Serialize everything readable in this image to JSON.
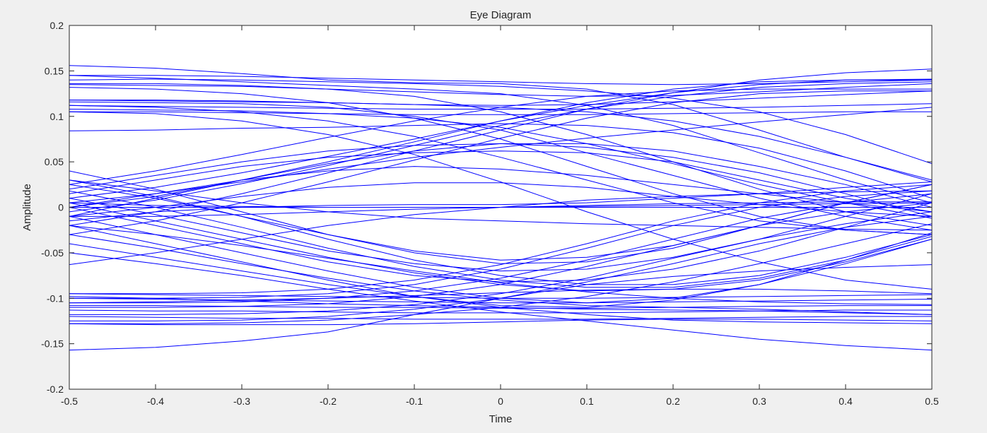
{
  "chart_data": {
    "type": "line",
    "title": "Eye Diagram",
    "xlabel": "Time",
    "ylabel": "Amplitude",
    "xlim": [
      -0.5,
      0.5
    ],
    "ylim": [
      -0.2,
      0.2
    ],
    "xticks": [
      -0.5,
      -0.4,
      -0.3,
      -0.2,
      -0.1,
      0,
      0.1,
      0.2,
      0.3,
      0.4,
      0.5
    ],
    "yticks": [
      -0.2,
      -0.15,
      -0.1,
      -0.05,
      0,
      0.05,
      0.1,
      0.15,
      0.2
    ],
    "xtick_labels": [
      "-0.5",
      "-0.4",
      "-0.3",
      "-0.2",
      "-0.1",
      "0",
      "0.1",
      "0.2",
      "0.3",
      "0.4",
      "0.5"
    ],
    "ytick_labels": [
      "-0.2",
      "-0.15",
      "-0.1",
      "-0.05",
      "0",
      "0.05",
      "0.1",
      "0.15",
      "0.2"
    ],
    "grid": false,
    "line_color": "#0000ff",
    "x": [
      -0.5,
      -0.4,
      -0.3,
      -0.2,
      -0.1,
      0,
      0.1,
      0.2,
      0.3,
      0.4,
      0.5
    ],
    "traces": [
      [
        0.156,
        0.153,
        0.147,
        0.14,
        0.137,
        0.136,
        0.13,
        0.113,
        0.085,
        0.055,
        0.028
      ],
      [
        0.145,
        0.142,
        0.138,
        0.134,
        0.13,
        0.125,
        0.112,
        0.09,
        0.06,
        0.03,
        0.005
      ],
      [
        0.14,
        0.141,
        0.14,
        0.138,
        0.136,
        0.133,
        0.128,
        0.12,
        0.105,
        0.08,
        0.048
      ],
      [
        0.136,
        0.136,
        0.134,
        0.13,
        0.122,
        0.105,
        0.08,
        0.05,
        0.02,
        -0.005,
        -0.02
      ],
      [
        0.132,
        0.13,
        0.125,
        0.115,
        0.098,
        0.075,
        0.045,
        0.015,
        -0.01,
        -0.025,
        -0.03
      ],
      [
        0.118,
        0.117,
        0.116,
        0.115,
        0.113,
        0.11,
        0.105,
        0.095,
        0.078,
        0.055,
        0.03
      ],
      [
        0.116,
        0.115,
        0.114,
        0.11,
        0.1,
        0.085,
        0.06,
        0.035,
        0.01,
        -0.01,
        -0.025
      ],
      [
        0.112,
        0.11,
        0.105,
        0.095,
        0.078,
        0.055,
        0.03,
        0.005,
        -0.015,
        -0.025,
        -0.03
      ],
      [
        0.108,
        0.107,
        0.106,
        0.103,
        0.098,
        0.088,
        0.07,
        0.048,
        0.025,
        0.005,
        -0.012
      ],
      [
        0.105,
        0.103,
        0.095,
        0.08,
        0.058,
        0.028,
        -0.005,
        -0.035,
        -0.06,
        -0.08,
        -0.09
      ],
      [
        0.084,
        0.085,
        0.087,
        0.088,
        0.09,
        0.092,
        0.09,
        0.082,
        0.065,
        0.04,
        0.01
      ],
      [
        0.0,
        0.012,
        0.03,
        0.05,
        0.072,
        0.095,
        0.115,
        0.13,
        0.138,
        0.14,
        0.14
      ],
      [
        -0.005,
        0.008,
        0.026,
        0.046,
        0.068,
        0.09,
        0.108,
        0.122,
        0.132,
        0.136,
        0.138
      ],
      [
        0.01,
        0.022,
        0.038,
        0.056,
        0.075,
        0.095,
        0.112,
        0.126,
        0.135,
        0.14,
        0.141
      ],
      [
        -0.02,
        -0.005,
        0.015,
        0.038,
        0.062,
        0.085,
        0.108,
        0.126,
        0.14,
        0.148,
        0.152
      ],
      [
        0.025,
        0.04,
        0.058,
        0.077,
        0.095,
        0.11,
        0.122,
        0.128,
        0.13,
        0.13,
        0.13
      ],
      [
        -0.03,
        -0.015,
        0.005,
        0.028,
        0.052,
        0.076,
        0.098,
        0.115,
        0.125,
        0.128,
        0.128
      ],
      [
        0.005,
        0.015,
        0.028,
        0.042,
        0.055,
        0.066,
        0.076,
        0.085,
        0.094,
        0.102,
        0.11
      ],
      [
        0.015,
        0.03,
        0.045,
        0.055,
        0.06,
        0.062,
        0.06,
        0.05,
        0.03,
        0.01,
        -0.005
      ],
      [
        0.02,
        0.035,
        0.05,
        0.062,
        0.068,
        0.07,
        0.066,
        0.055,
        0.038,
        0.015,
        -0.01
      ],
      [
        -0.01,
        0.01,
        0.03,
        0.048,
        0.062,
        0.07,
        0.07,
        0.062,
        0.045,
        0.025,
        0.0
      ],
      [
        0.0,
        0.015,
        0.03,
        0.04,
        0.045,
        0.042,
        0.035,
        0.025,
        0.015,
        0.005,
        -0.005
      ],
      [
        -0.01,
        0.0,
        0.012,
        0.022,
        0.027,
        0.027,
        0.022,
        0.012,
        0.003,
        -0.005,
        -0.01
      ],
      [
        -0.015,
        -0.005,
        0.0,
        0.002,
        0.003,
        0.003,
        0.005,
        0.01,
        0.015,
        0.022,
        0.028
      ],
      [
        0.005,
        0.002,
        0.001,
        0.0,
        0.0,
        0.0,
        0.001,
        0.002,
        0.003,
        0.004,
        0.005
      ],
      [
        0.03,
        0.018,
        0.005,
        -0.005,
        -0.012,
        -0.015,
        -0.018,
        -0.02,
        -0.022,
        -0.024,
        -0.025
      ],
      [
        -0.063,
        -0.05,
        -0.035,
        -0.02,
        -0.008,
        0.0,
        0.008,
        0.012,
        0.015,
        0.017,
        0.018
      ],
      [
        0.04,
        0.02,
        -0.005,
        -0.03,
        -0.05,
        -0.062,
        -0.06,
        -0.045,
        -0.02,
        0.005,
        0.025
      ],
      [
        0.025,
        0.01,
        -0.01,
        -0.03,
        -0.048,
        -0.058,
        -0.055,
        -0.042,
        -0.02,
        0.005,
        0.025
      ],
      [
        0.01,
        -0.008,
        -0.028,
        -0.048,
        -0.062,
        -0.07,
        -0.068,
        -0.055,
        -0.035,
        -0.01,
        0.015
      ],
      [
        0.0,
        -0.02,
        -0.04,
        -0.06,
        -0.075,
        -0.082,
        -0.08,
        -0.068,
        -0.048,
        -0.022,
        0.005
      ],
      [
        0.03,
        0.012,
        -0.01,
        -0.035,
        -0.058,
        -0.075,
        -0.085,
        -0.085,
        -0.075,
        -0.055,
        -0.03
      ],
      [
        0.018,
        0.0,
        -0.022,
        -0.045,
        -0.065,
        -0.08,
        -0.088,
        -0.088,
        -0.078,
        -0.058,
        -0.032
      ],
      [
        0.005,
        -0.015,
        -0.035,
        -0.055,
        -0.072,
        -0.085,
        -0.092,
        -0.09,
        -0.08,
        -0.06,
        -0.035
      ],
      [
        -0.01,
        -0.03,
        -0.05,
        -0.07,
        -0.088,
        -0.1,
        -0.105,
        -0.1,
        -0.085,
        -0.062,
        -0.035
      ],
      [
        -0.02,
        -0.04,
        -0.06,
        -0.08,
        -0.098,
        -0.108,
        -0.11,
        -0.102,
        -0.085,
        -0.058,
        -0.028
      ],
      [
        -0.03,
        -0.045,
        -0.062,
        -0.078,
        -0.092,
        -0.102,
        -0.108,
        -0.11,
        -0.112,
        -0.115,
        -0.118
      ],
      [
        -0.04,
        -0.055,
        -0.07,
        -0.085,
        -0.098,
        -0.11,
        -0.118,
        -0.124,
        -0.126,
        -0.127,
        -0.128
      ],
      [
        -0.05,
        -0.062,
        -0.075,
        -0.09,
        -0.103,
        -0.115,
        -0.125,
        -0.135,
        -0.145,
        -0.152,
        -0.157
      ],
      [
        -0.02,
        -0.03,
        -0.042,
        -0.056,
        -0.07,
        -0.083,
        -0.093,
        -0.1,
        -0.104,
        -0.106,
        -0.107
      ],
      [
        -0.095,
        -0.095,
        -0.094,
        -0.09,
        -0.08,
        -0.063,
        -0.04,
        -0.015,
        0.005,
        0.018,
        0.025
      ],
      [
        -0.1,
        -0.1,
        -0.099,
        -0.095,
        -0.085,
        -0.068,
        -0.045,
        -0.02,
        0.0,
        0.012,
        0.018
      ],
      [
        -0.105,
        -0.105,
        -0.104,
        -0.1,
        -0.092,
        -0.078,
        -0.058,
        -0.035,
        -0.012,
        0.005,
        0.015
      ],
      [
        -0.11,
        -0.11,
        -0.109,
        -0.106,
        -0.098,
        -0.085,
        -0.065,
        -0.042,
        -0.02,
        -0.005,
        0.005
      ],
      [
        -0.118,
        -0.118,
        -0.117,
        -0.114,
        -0.107,
        -0.095,
        -0.078,
        -0.056,
        -0.035,
        -0.018,
        -0.005
      ],
      [
        -0.125,
        -0.125,
        -0.124,
        -0.12,
        -0.112,
        -0.1,
        -0.082,
        -0.062,
        -0.04,
        -0.022,
        -0.01
      ],
      [
        -0.157,
        -0.154,
        -0.147,
        -0.137,
        -0.118,
        -0.1,
        -0.085,
        -0.076,
        -0.07,
        -0.066,
        -0.063
      ],
      [
        -0.128,
        -0.128,
        -0.127,
        -0.124,
        -0.118,
        -0.11,
        -0.098,
        -0.082,
        -0.062,
        -0.04,
        -0.018
      ],
      [
        -0.095,
        -0.096,
        -0.097,
        -0.098,
        -0.099,
        -0.1,
        -0.1,
        -0.099,
        -0.098,
        -0.097,
        -0.096
      ],
      [
        -0.1,
        -0.101,
        -0.102,
        -0.103,
        -0.104,
        -0.105,
        -0.105,
        -0.104,
        -0.103,
        -0.102,
        -0.101
      ],
      [
        -0.108,
        -0.108,
        -0.109,
        -0.11,
        -0.11,
        -0.111,
        -0.111,
        -0.11,
        -0.109,
        -0.108,
        -0.108
      ],
      [
        -0.113,
        -0.114,
        -0.114,
        -0.115,
        -0.116,
        -0.116,
        -0.116,
        -0.115,
        -0.114,
        -0.113,
        -0.113
      ],
      [
        -0.12,
        -0.121,
        -0.122,
        -0.122,
        -0.123,
        -0.123,
        -0.123,
        -0.122,
        -0.121,
        -0.12,
        -0.12
      ],
      [
        -0.128,
        -0.129,
        -0.129,
        -0.129,
        -0.128,
        -0.126,
        -0.124,
        -0.123,
        -0.123,
        -0.124,
        -0.125
      ],
      [
        -0.098,
        -0.1,
        -0.103,
        -0.106,
        -0.108,
        -0.11,
        -0.112,
        -0.113,
        -0.114,
        -0.116,
        -0.118
      ],
      [
        -0.105,
        -0.104,
        -0.102,
        -0.1,
        -0.097,
        -0.094,
        -0.091,
        -0.09,
        -0.09,
        -0.092,
        -0.095
      ],
      [
        0.145,
        0.145,
        0.144,
        0.142,
        0.14,
        0.138,
        0.136,
        0.135,
        0.136,
        0.138,
        0.14
      ],
      [
        0.135,
        0.134,
        0.133,
        0.13,
        0.127,
        0.124,
        0.122,
        0.123,
        0.127,
        0.132,
        0.136
      ],
      [
        0.118,
        0.118,
        0.117,
        0.115,
        0.113,
        0.112,
        0.113,
        0.116,
        0.12,
        0.124,
        0.128
      ],
      [
        0.112,
        0.111,
        0.11,
        0.109,
        0.108,
        0.108,
        0.108,
        0.109,
        0.11,
        0.112,
        0.114
      ],
      [
        0.105,
        0.105,
        0.104,
        0.103,
        0.102,
        0.102,
        0.102,
        0.103,
        0.104,
        0.105,
        0.105
      ],
      [
        0.0,
        0.0,
        0.0,
        0.0,
        0.0,
        0.0,
        0.0,
        0.0,
        0.0,
        0.0,
        0.0
      ],
      [
        -0.01,
        -0.01,
        -0.008,
        -0.005,
        -0.002,
        0.0,
        0.002,
        0.004,
        0.005,
        0.006,
        0.006
      ]
    ]
  }
}
